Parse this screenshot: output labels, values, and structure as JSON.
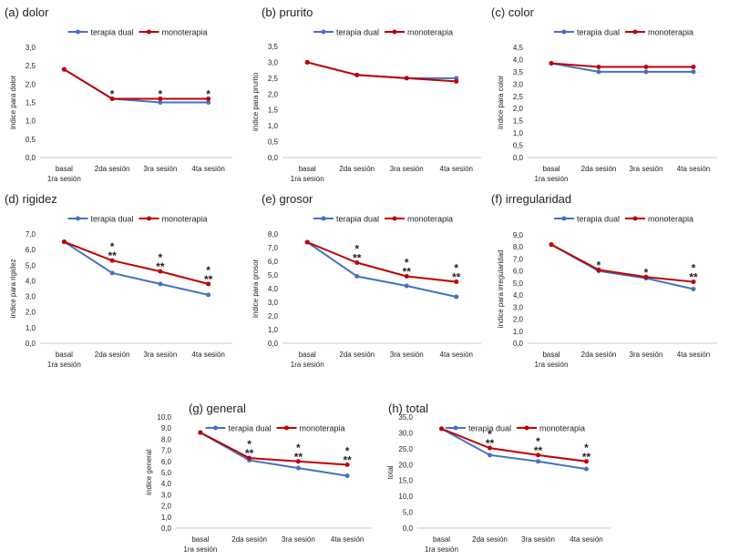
{
  "legend_labels": {
    "dual": "terapia dual",
    "mono": "monoterapia"
  },
  "colors": {
    "dual": "#4472C4",
    "mono": "#C00000"
  },
  "chart_data": [
    {
      "panel": "(a) dolor",
      "type": "line",
      "categories": [
        [
          "basal",
          "1ra sesión"
        ],
        [
          "2da sesión"
        ],
        [
          "3ra sesión"
        ],
        [
          "4ta sesión"
        ]
      ],
      "ylabel": "índice para dolor",
      "ylim": [
        0,
        3
      ],
      "yticks": [
        "0,0",
        "0,5",
        "1,0",
        "1,5",
        "2,0",
        "2,5",
        "3,0"
      ],
      "series": [
        {
          "name": "terapia dual",
          "values": [
            2.4,
            1.6,
            1.5,
            1.5
          ]
        },
        {
          "name": "monoterapia",
          "values": [
            2.4,
            1.6,
            1.6,
            1.6
          ]
        }
      ],
      "annotations": [
        "",
        "*",
        "*",
        "*"
      ]
    },
    {
      "panel": "(b) prurito",
      "type": "line",
      "categories": [
        [
          "basal",
          "1ra sesión"
        ],
        [
          "2da sesión"
        ],
        [
          "3ra sesión"
        ],
        [
          "4ta sesión"
        ]
      ],
      "ylabel": "índice para prurito",
      "ylim": [
        0,
        3.5
      ],
      "yticks": [
        "0,0",
        "0,5",
        "1,0",
        "1,5",
        "2,0",
        "2,5",
        "3,0",
        "3,5"
      ],
      "series": [
        {
          "name": "terapia dual",
          "values": [
            3.0,
            2.6,
            2.5,
            2.5
          ]
        },
        {
          "name": "monoterapia",
          "values": [
            3.0,
            2.6,
            2.5,
            2.4
          ]
        }
      ],
      "annotations": [
        "",
        "",
        "",
        ""
      ]
    },
    {
      "panel": "(c) color",
      "type": "line",
      "categories": [
        [
          "basal",
          "1ra sesión"
        ],
        [
          "2da sesión"
        ],
        [
          "3ra sesión"
        ],
        [
          "4ta sesión"
        ]
      ],
      "ylabel": "índice para color",
      "ylim": [
        0,
        4.5
      ],
      "yticks": [
        "0,0",
        "0,5",
        "1,0",
        "1,5",
        "2,0",
        "2,5",
        "3,0",
        "3,5",
        "4,0",
        "4,5"
      ],
      "series": [
        {
          "name": "terapia dual",
          "values": [
            3.85,
            3.5,
            3.5,
            3.5
          ]
        },
        {
          "name": "monoterapia",
          "values": [
            3.85,
            3.7,
            3.7,
            3.7
          ]
        }
      ],
      "annotations": [
        "",
        "",
        "",
        ""
      ]
    },
    {
      "panel": "(d) rigidez",
      "type": "line",
      "categories": [
        [
          "basal",
          "1ra sesión"
        ],
        [
          "2da sesión"
        ],
        [
          "3ra sesión"
        ],
        [
          "4ta sesión"
        ]
      ],
      "ylabel": "índice para rigidez",
      "ylim": [
        0,
        7
      ],
      "yticks": [
        "0,0",
        "1,0",
        "2,0",
        "3,0",
        "4,0",
        "5,0",
        "6,0",
        "7,0"
      ],
      "series": [
        {
          "name": "terapia dual",
          "values": [
            6.5,
            4.5,
            3.8,
            3.1
          ]
        },
        {
          "name": "monoterapia",
          "values": [
            6.5,
            5.3,
            4.6,
            3.8
          ]
        }
      ],
      "annotations": [
        "",
        "*\n**",
        "*\n**",
        "*\n**"
      ]
    },
    {
      "panel": "(e) grosor",
      "type": "line",
      "categories": [
        [
          "basal",
          "1ra sesión"
        ],
        [
          "2da sesión"
        ],
        [
          "3ra sesión"
        ],
        [
          "4ta sesión"
        ]
      ],
      "ylabel": "índice para grosor",
      "ylim": [
        0,
        8
      ],
      "yticks": [
        "0,0",
        "1,0",
        "2,0",
        "3,0",
        "4,0",
        "5,0",
        "6,0",
        "7,0",
        "8,0"
      ],
      "series": [
        {
          "name": "terapia dual",
          "values": [
            7.4,
            4.9,
            4.2,
            3.4
          ]
        },
        {
          "name": "monoterapia",
          "values": [
            7.4,
            5.9,
            4.9,
            4.5
          ]
        }
      ],
      "annotations": [
        "",
        "*\n**",
        "*\n**",
        "*\n**"
      ]
    },
    {
      "panel": "(f) irregularidad",
      "type": "line",
      "categories": [
        [
          "basal",
          "1ra sesión"
        ],
        [
          "2da sesión"
        ],
        [
          "3ra sesión"
        ],
        [
          "4ta sesión"
        ]
      ],
      "ylabel": "índice para irregularidad",
      "ylim": [
        0,
        9
      ],
      "yticks": [
        "0,0",
        "1,0",
        "2,0",
        "3,0",
        "4,0",
        "5,0",
        "6,0",
        "7,0",
        "8,0",
        "9,0"
      ],
      "series": [
        {
          "name": "terapia dual",
          "values": [
            8.2,
            6.0,
            5.4,
            4.5
          ]
        },
        {
          "name": "monoterapia",
          "values": [
            8.2,
            6.1,
            5.5,
            5.1
          ]
        }
      ],
      "annotations": [
        "",
        "*",
        "*",
        "*\n**"
      ]
    },
    {
      "panel": "(g) general",
      "type": "line",
      "categories": [
        [
          "basal",
          "1ra sesión"
        ],
        [
          "2da sesión"
        ],
        [
          "3ra sesión"
        ],
        [
          "4ta sesión"
        ]
      ],
      "ylabel": "índice general",
      "ylim": [
        0,
        10
      ],
      "yticks": [
        "0,0",
        "1,0",
        "2,0",
        "3,0",
        "4,0",
        "5,0",
        "6,0",
        "7,0",
        "8,0",
        "9,0",
        "10,0"
      ],
      "series": [
        {
          "name": "terapia dual",
          "values": [
            8.6,
            6.1,
            5.4,
            4.7
          ]
        },
        {
          "name": "monoterapia",
          "values": [
            8.6,
            6.3,
            6.0,
            5.7
          ]
        }
      ],
      "annotations": [
        "",
        "*\n**",
        "*\n**",
        "*\n**"
      ]
    },
    {
      "panel": "(h) total",
      "type": "line",
      "categories": [
        [
          "basal",
          "1ra sesión"
        ],
        [
          "2da sesión"
        ],
        [
          "3ra sesión"
        ],
        [
          "4ta sesión"
        ]
      ],
      "ylabel": "total",
      "ylim": [
        0,
        35
      ],
      "yticks": [
        "0,0",
        "5,0",
        "10,0",
        "15,0",
        "20,0",
        "25,0",
        "30,0",
        "35,0"
      ],
      "series": [
        {
          "name": "terapia dual",
          "values": [
            31.3,
            23.0,
            21.0,
            18.6
          ]
        },
        {
          "name": "monoterapia",
          "values": [
            31.3,
            25.2,
            23.0,
            21.0
          ]
        }
      ],
      "annotations": [
        "",
        "*\n**",
        "*\n**",
        "*\n**"
      ]
    }
  ]
}
